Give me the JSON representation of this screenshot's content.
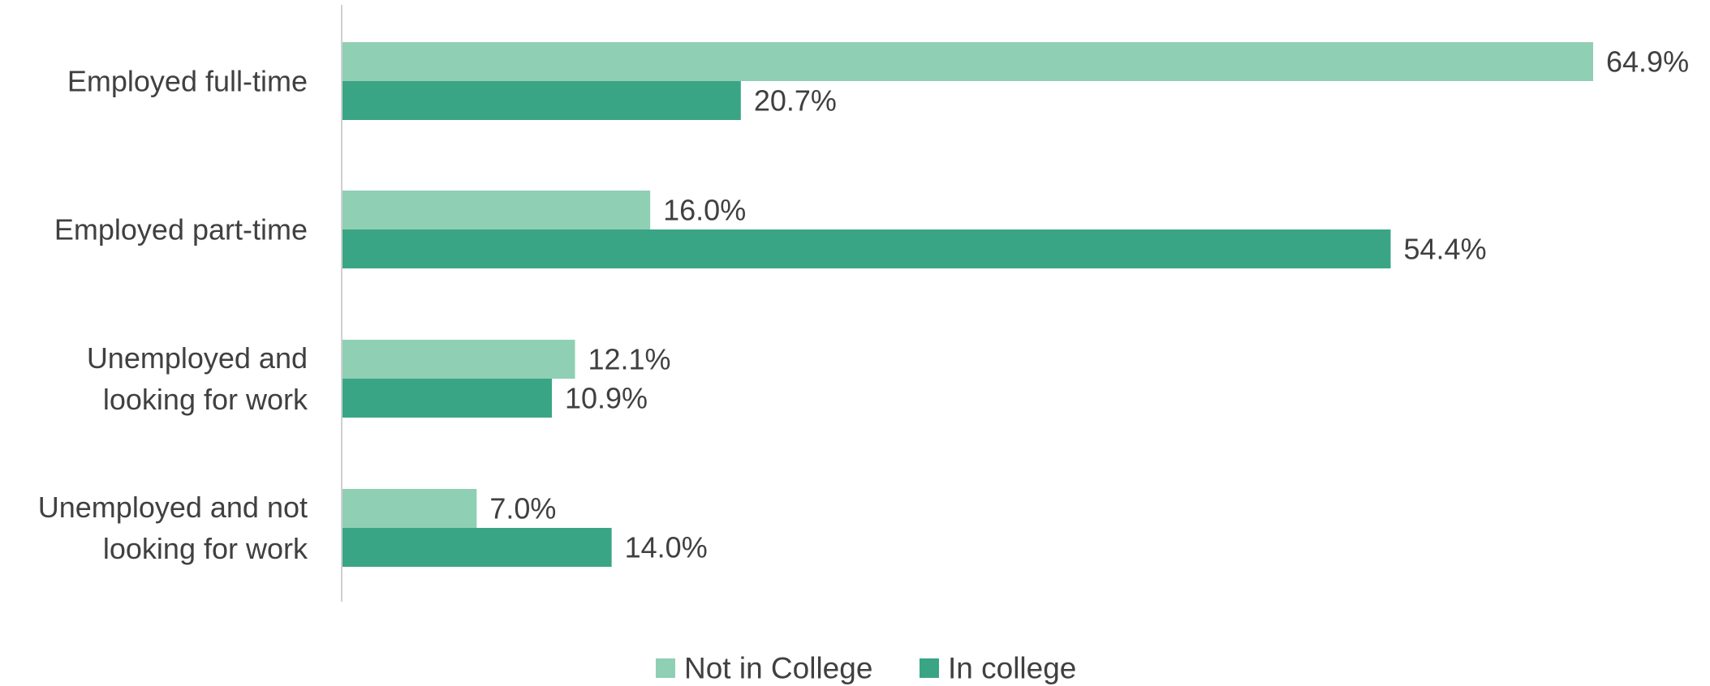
{
  "chart_data": {
    "type": "bar",
    "orientation": "horizontal",
    "categories": [
      [
        "Employed full-time"
      ],
      [
        "Employed part-time"
      ],
      [
        "Unemployed and",
        "looking for work"
      ],
      [
        "Unemployed and not",
        "looking for work"
      ]
    ],
    "series": [
      {
        "name": "Not in College",
        "color": "#8fcfb4",
        "values": [
          64.9,
          16.0,
          12.1,
          7.0
        ],
        "labels": [
          "64.9%",
          "16.0%",
          "12.1%",
          "7.0%"
        ]
      },
      {
        "name": "In college",
        "color": "#3aa585",
        "values": [
          20.7,
          54.4,
          10.9,
          14.0
        ],
        "labels": [
          "20.7%",
          "54.4%",
          "10.9%",
          "14.0%"
        ]
      }
    ],
    "xlim": [
      0,
      64.9
    ],
    "grid": false,
    "legend_position": "bottom-center",
    "title": "",
    "xlabel": "",
    "ylabel": ""
  }
}
